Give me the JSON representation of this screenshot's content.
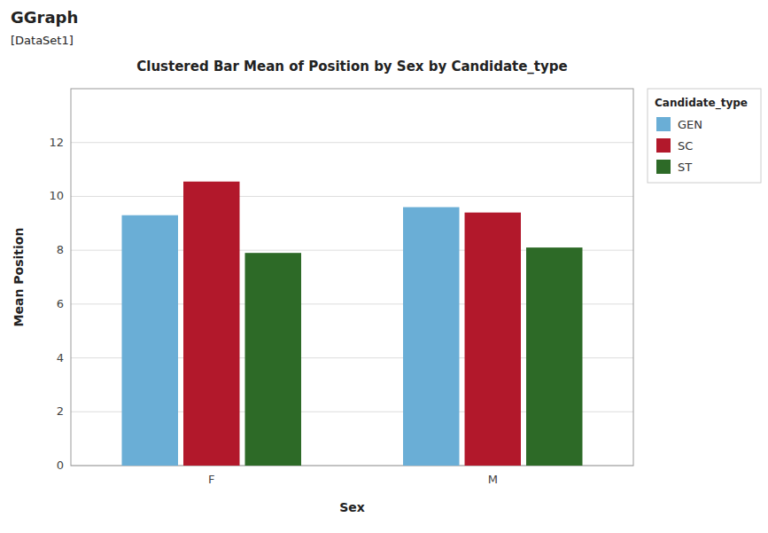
{
  "chart_data": {
    "type": "bar",
    "title": "Clustered Bar Mean of Position by Sex by Candidate_type",
    "annotations": [
      "GGraph",
      "[DataSet1]"
    ],
    "x_label": "Sex",
    "y_label": "Mean Position",
    "legend_title": "Candidate_type",
    "categories": [
      "F",
      "M"
    ],
    "series": [
      {
        "name": "GEN",
        "color": "#6aaed6",
        "values": [
          9.3,
          9.6
        ]
      },
      {
        "name": "SC",
        "color": "#b2182b",
        "values": [
          10.55,
          9.4
        ]
      },
      {
        "name": "ST",
        "color": "#2d6a27",
        "values": [
          7.9,
          8.1
        ]
      }
    ],
    "ylim": [
      0,
      14
    ],
    "yticks": [
      0,
      2,
      4,
      6,
      8,
      10,
      12
    ],
    "grid": true,
    "legend": "upper right"
  }
}
